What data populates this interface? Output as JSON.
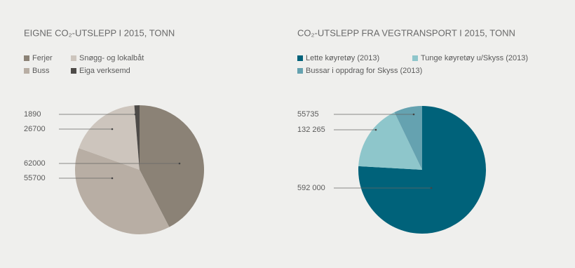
{
  "chart_data": [
    {
      "type": "pie",
      "title": "EIGNE CO₂-UTSLEPP I 2015, TONN",
      "categories": [
        "Ferjer",
        "Buss",
        "Snøgg- og lokalbåt",
        "Eiga verksemd"
      ],
      "values": [
        62000,
        55700,
        26700,
        1890
      ],
      "colors": [
        "#8b8276",
        "#b8aea4",
        "#cdc5bd",
        "#4e4b48"
      ]
    },
    {
      "type": "pie",
      "title": "CO₂-UTSLEPP FRA VEGTRANSPORT I 2015, TONN",
      "categories": [
        "Lette køyretøy (2013)",
        "Tunge køyretøy u/Skyss (2013)",
        "Bussar i oppdrag for Skyss (2013)"
      ],
      "values": [
        592000,
        132265,
        55735
      ],
      "value_labels": [
        "592 000",
        "132 265",
        "55735"
      ],
      "colors": [
        "#00627a",
        "#8ec6cb",
        "#65a2b0"
      ]
    }
  ]
}
